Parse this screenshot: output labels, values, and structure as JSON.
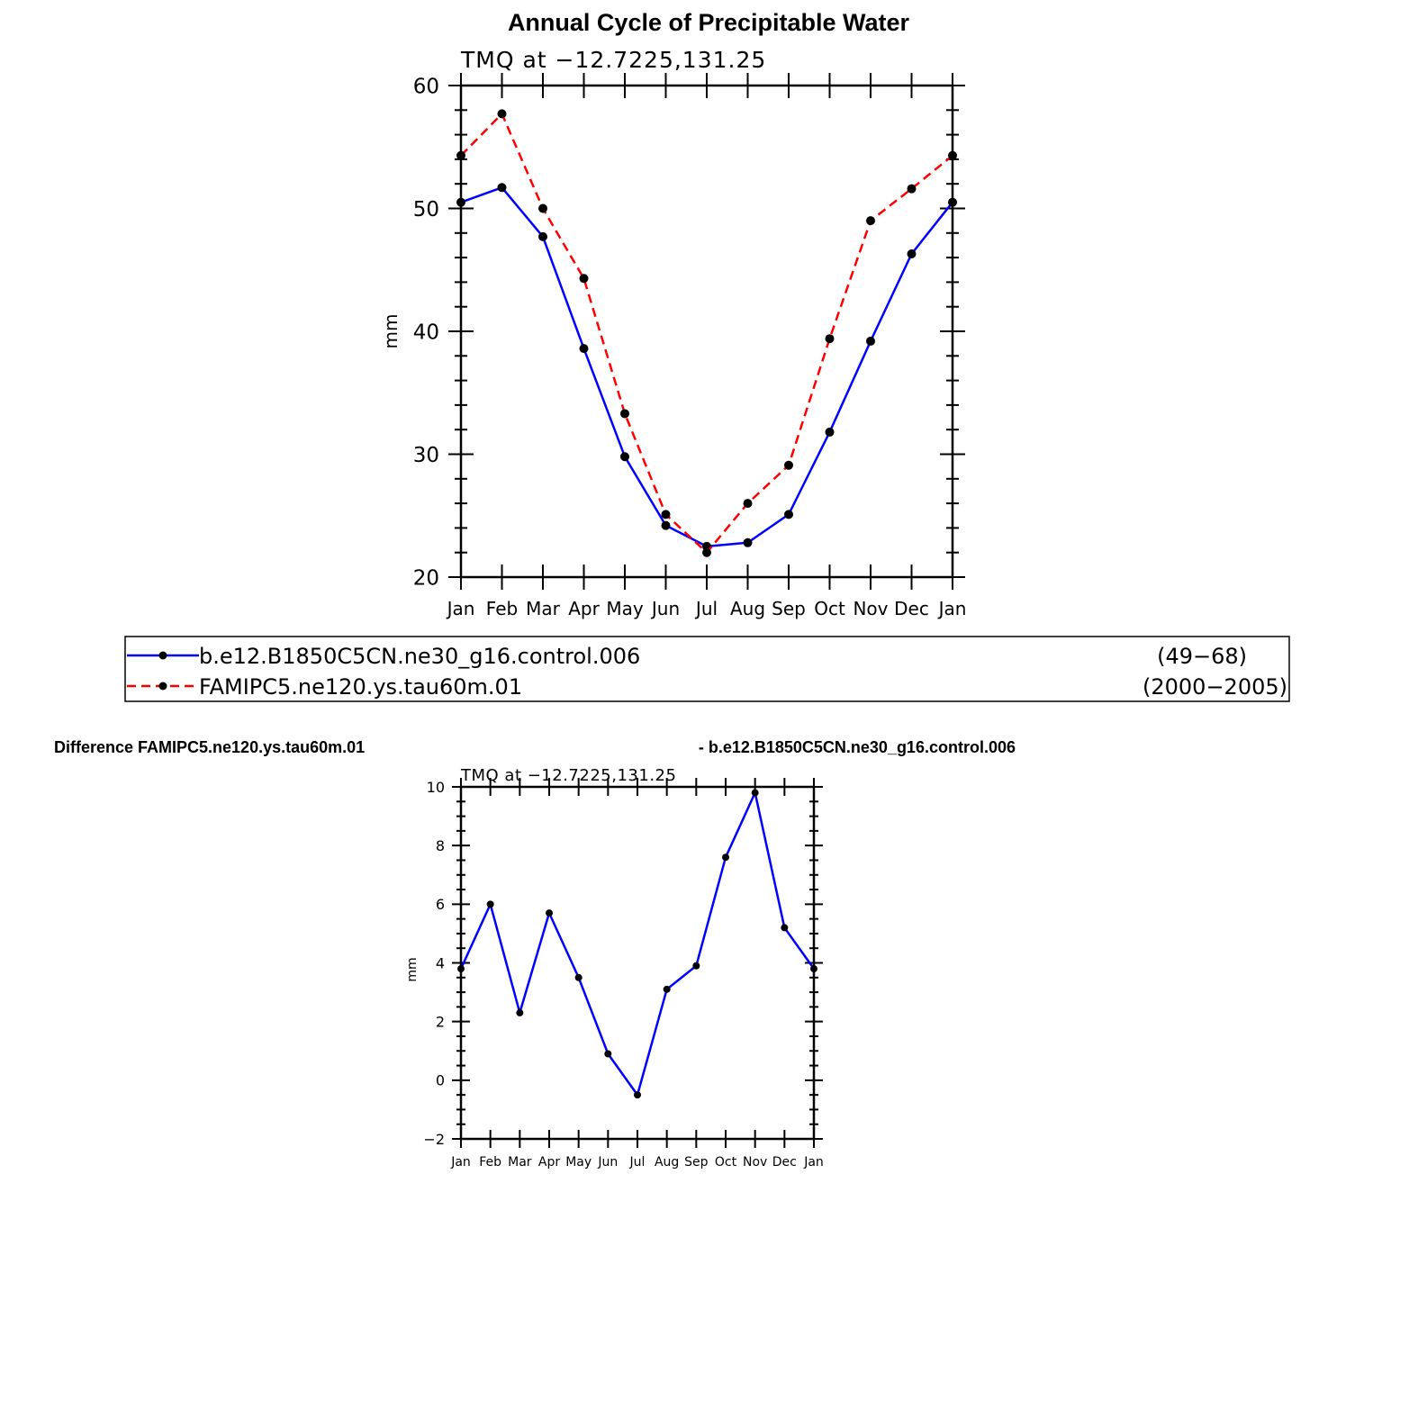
{
  "page_title": "Annual Cycle of Precipitable Water",
  "diff_title_left": "Difference FAMIPC5.ne120.ys.tau60m.01",
  "diff_title_right": "- b.e12.B1850C5CN.ne30_g16.control.006",
  "legend": {
    "entries": [
      {
        "name": "b.e12.B1850C5CN.ne30_g16.control.006",
        "years": "(49−68)"
      },
      {
        "name": "FAMIPC5.ne120.ys.tau60m.01",
        "years": "(2000−2005)"
      }
    ]
  },
  "chart_data": [
    {
      "type": "line",
      "subtitle": "TMQ  at  −12.7225,131.25",
      "ylabel": "mm",
      "categories": [
        "Jan",
        "Feb",
        "Mar",
        "Apr",
        "May",
        "Jun",
        "Jul",
        "Aug",
        "Sep",
        "Oct",
        "Nov",
        "Dec",
        "Jan"
      ],
      "ylim": [
        20,
        60
      ],
      "yticks": [
        20,
        30,
        40,
        50,
        60
      ],
      "series": [
        {
          "name": "b.e12.B1850C5CN.ne30_g16.control.006",
          "color": "#0000ff",
          "dash": "solid",
          "values": [
            50.5,
            51.7,
            47.7,
            38.6,
            29.8,
            24.2,
            22.5,
            22.8,
            25.1,
            31.8,
            39.2,
            46.3,
            50.5
          ]
        },
        {
          "name": "FAMIPC5.ne120.ys.tau60m.01",
          "color": "#ff0000",
          "dash": "dashed",
          "values": [
            54.3,
            57.7,
            50.0,
            44.3,
            33.3,
            25.1,
            22.0,
            26.0,
            29.1,
            39.4,
            49.0,
            51.6,
            54.3
          ]
        }
      ]
    },
    {
      "type": "line",
      "subtitle": "TMQ  at  −12.7225,131.25",
      "ylabel": "mm",
      "categories": [
        "Jan",
        "Feb",
        "Mar",
        "Apr",
        "May",
        "Jun",
        "Jul",
        "Aug",
        "Sep",
        "Oct",
        "Nov",
        "Dec",
        "Jan"
      ],
      "ylim": [
        -2,
        10
      ],
      "yticks": [
        -2,
        0,
        2,
        4,
        6,
        8,
        10
      ],
      "series": [
        {
          "color": "#0000ff",
          "dash": "solid",
          "values": [
            3.8,
            6.0,
            2.3,
            5.7,
            3.5,
            0.9,
            -0.5,
            3.1,
            3.9,
            7.6,
            9.8,
            5.2,
            3.8
          ]
        }
      ]
    }
  ]
}
